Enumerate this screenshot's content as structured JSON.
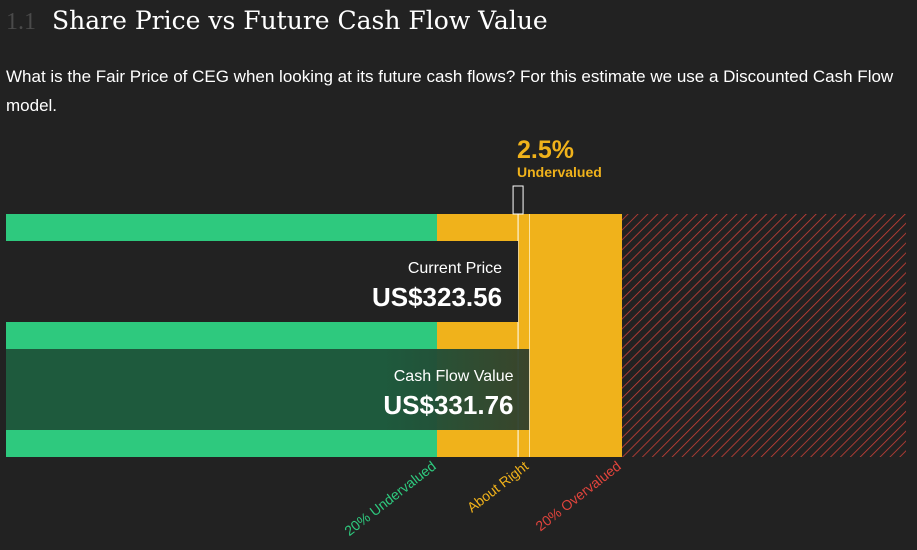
{
  "section": {
    "number": "1.1",
    "title": "Share Price vs Future Cash Flow Value"
  },
  "description": "What is the Fair Price of CEG when looking at its future cash flows? For this estimate we use a Discounted Cash Flow model.",
  "chart_data": {
    "type": "valuation-bar",
    "current_price": {
      "label": "Current Price",
      "display": "US$323.56",
      "value": 323.56
    },
    "fair_value": {
      "label": "Cash Flow Value",
      "display": "US$331.76",
      "value": 331.76
    },
    "valuation": {
      "percent_text": "2.5%",
      "status": "Undervalued",
      "percent": 2.5
    },
    "zones": [
      {
        "label": "20% Undervalued",
        "color": "#2ec97e"
      },
      {
        "label": "About Right",
        "color": "#f0b21b"
      },
      {
        "label": "20% Overvalued",
        "color": "#e0443c"
      }
    ],
    "colors": {
      "background": "#222222",
      "undervalued": "#2ec97e",
      "about_right": "#f0b21b",
      "overvalued": "#e0443c",
      "price_box": "#222222",
      "fair_box": "#1e5a3d"
    }
  }
}
